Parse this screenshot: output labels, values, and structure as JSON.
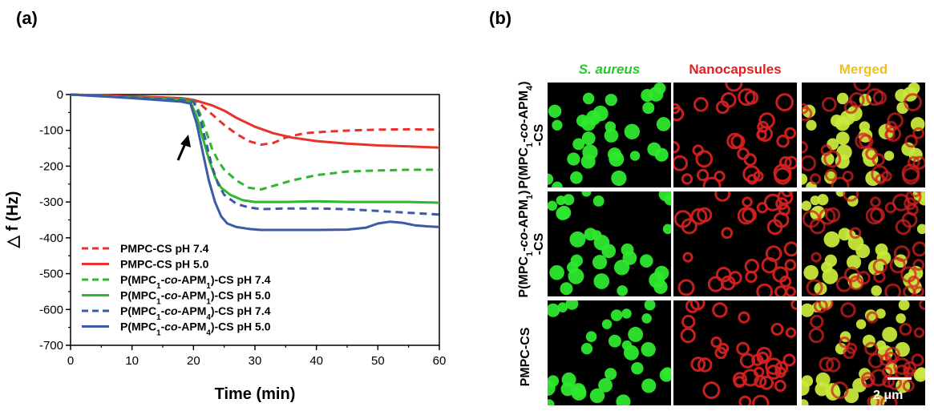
{
  "panel_a_label": "(a)",
  "panel_b_label": "(b)",
  "chart_data": {
    "type": "line",
    "xlabel": "Time (min)",
    "ylabel": "△ f (Hz)",
    "xlim": [
      0,
      60
    ],
    "ylim": [
      -700,
      0
    ],
    "xticks": [
      0,
      10,
      20,
      30,
      40,
      50,
      60
    ],
    "yticks": [
      0,
      -100,
      -200,
      -300,
      -400,
      -500,
      -600,
      -700
    ],
    "grid": false,
    "legend_position": "bottom-left",
    "annotation": "arrow at ~19 min (sample injection)",
    "series": [
      {
        "name": "PMPC-CS pH 7.4",
        "name_parts": [
          [
            "PMPC-CS pH 7.4",
            ""
          ]
        ],
        "color": "#e8312a",
        "dash": "dashed",
        "x": [
          0,
          10,
          18,
          20,
          21,
          23,
          25,
          27,
          29,
          31,
          33,
          35,
          38,
          42,
          46,
          50,
          55,
          60
        ],
        "y": [
          0,
          -5,
          -10,
          -15,
          -25,
          -55,
          -85,
          -110,
          -130,
          -140,
          -135,
          -120,
          -108,
          -103,
          -100,
          -98,
          -97,
          -98
        ]
      },
      {
        "name": "PMPC-CS pH 5.0",
        "name_parts": [
          [
            "PMPC-CS pH 5.0",
            ""
          ]
        ],
        "color": "#e8312a",
        "dash": "solid",
        "x": [
          0,
          10,
          18,
          20,
          21,
          23,
          25,
          27,
          30,
          33,
          36,
          40,
          45,
          50,
          55,
          60
        ],
        "y": [
          0,
          -5,
          -10,
          -15,
          -20,
          -30,
          -45,
          -65,
          -90,
          -108,
          -120,
          -130,
          -137,
          -142,
          -145,
          -148
        ]
      },
      {
        "name": "P(MPC1-co-APM1)-CS pH 7.4",
        "name_parts": [
          [
            "P(MPC",
            ""
          ],
          [
            "1",
            "sub"
          ],
          [
            "-",
            ""
          ],
          [
            "co",
            "it"
          ],
          [
            "-APM",
            ""
          ],
          [
            "1",
            "sub"
          ],
          [
            ")-CS pH 7.4",
            ""
          ]
        ],
        "color": "#2db82d",
        "dash": "dashed",
        "x": [
          0,
          10,
          18,
          20,
          21,
          22,
          23,
          24,
          25,
          27,
          29,
          31,
          33,
          36,
          40,
          45,
          50,
          55,
          60
        ],
        "y": [
          0,
          -8,
          -12,
          -18,
          -50,
          -100,
          -150,
          -185,
          -210,
          -240,
          -260,
          -265,
          -255,
          -240,
          -225,
          -215,
          -212,
          -210,
          -210
        ]
      },
      {
        "name": "P(MPC1-co-APM1)-CS pH 5.0",
        "name_parts": [
          [
            "P(MPC",
            ""
          ],
          [
            "1",
            "sub"
          ],
          [
            "-",
            ""
          ],
          [
            "co",
            "it"
          ],
          [
            "-APM",
            ""
          ],
          [
            "1",
            "sub"
          ],
          [
            ")-CS pH 5.0",
            ""
          ]
        ],
        "color": "#2db82d",
        "dash": "solid",
        "x": [
          0,
          10,
          18,
          19.5,
          20.5,
          21.5,
          22.5,
          23.5,
          24.5,
          26,
          28,
          30,
          35,
          40,
          45,
          50,
          55,
          60
        ],
        "y": [
          0,
          -8,
          -15,
          -20,
          -60,
          -120,
          -180,
          -230,
          -260,
          -280,
          -295,
          -300,
          -300,
          -298,
          -300,
          -300,
          -300,
          -302
        ]
      },
      {
        "name": "P(MPC1-co-APM4)-CS pH 7.4",
        "name_parts": [
          [
            "P(MPC",
            ""
          ],
          [
            "1",
            "sub"
          ],
          [
            "-",
            ""
          ],
          [
            "co",
            "it"
          ],
          [
            "-APM",
            ""
          ],
          [
            "4",
            "sub"
          ],
          [
            ")-CS pH 7.4",
            ""
          ]
        ],
        "color": "#3b5aa8",
        "dash": "dashed",
        "x": [
          0,
          10,
          18,
          20,
          21,
          22,
          23,
          24,
          25,
          27,
          29,
          31,
          35,
          40,
          45,
          50,
          55,
          60
        ],
        "y": [
          0,
          -8,
          -15,
          -20,
          -60,
          -130,
          -200,
          -250,
          -280,
          -305,
          -315,
          -320,
          -318,
          -318,
          -320,
          -325,
          -330,
          -335
        ]
      },
      {
        "name": "P(MPC1-co-APM4)-CS pH 5.0",
        "name_parts": [
          [
            "P(MPC",
            ""
          ],
          [
            "1",
            "sub"
          ],
          [
            "-",
            ""
          ],
          [
            "co",
            "it"
          ],
          [
            "-APM",
            ""
          ],
          [
            "4",
            "sub"
          ],
          [
            ")-CS pH 5.0",
            ""
          ]
        ],
        "color": "#3b5aa8",
        "dash": "solid",
        "x": [
          0,
          10,
          18,
          19.5,
          20.5,
          21.5,
          22.5,
          23.5,
          24.5,
          25.5,
          27,
          29,
          31,
          35,
          40,
          45,
          48,
          50,
          52,
          54,
          56,
          58,
          60
        ],
        "y": [
          0,
          -10,
          -20,
          -25,
          -80,
          -160,
          -240,
          -300,
          -340,
          -360,
          -370,
          -375,
          -378,
          -378,
          -378,
          -377,
          -372,
          -360,
          -355,
          -358,
          -365,
          -368,
          -370
        ]
      }
    ]
  },
  "microscopy": {
    "column_headers": [
      {
        "parts": [
          [
            "S. aureus",
            "it"
          ]
        ],
        "color": "#22cc22"
      },
      {
        "parts": [
          [
            "Nanocapsules",
            ""
          ]
        ],
        "color": "#e02020"
      },
      {
        "parts": [
          [
            "Merged",
            ""
          ]
        ],
        "color": "#f0c020"
      }
    ],
    "row_headers": [
      {
        "line1": [
          [
            "P(MPC",
            ""
          ],
          [
            "1",
            "sub"
          ],
          [
            "-",
            ""
          ],
          [
            "co",
            "it"
          ],
          [
            "-APM",
            ""
          ],
          [
            "4",
            "sub"
          ],
          [
            ")",
            ""
          ]
        ],
        "line2": [
          [
            "-CS",
            ""
          ]
        ]
      },
      {
        "line1": [
          [
            "P(MPC",
            ""
          ],
          [
            "1",
            "sub"
          ],
          [
            "-",
            ""
          ],
          [
            "co",
            "it"
          ],
          [
            "-APM",
            ""
          ],
          [
            "1",
            "sub"
          ],
          [
            ")",
            ""
          ]
        ],
        "line2": [
          [
            "-CS",
            ""
          ]
        ]
      },
      {
        "line1": [
          [
            "PMPC-CS",
            ""
          ]
        ],
        "line2": []
      }
    ],
    "cell_bg": "#000000",
    "green": "#2ee82e",
    "red": "#d42020",
    "yellow_green": "#c8e83a",
    "scale_bar_label": "2 μm"
  }
}
